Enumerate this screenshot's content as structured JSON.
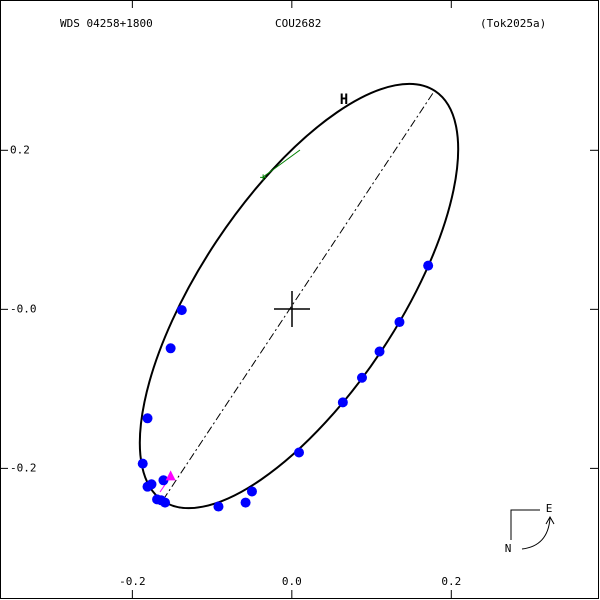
{
  "chart_data": {
    "type": "scatter",
    "header": {
      "left": "WDS 04258+1800",
      "center": "COU2682",
      "right": "(Tok2025a)"
    },
    "xlim": [
      -0.366,
      0.384
    ],
    "ylim": [
      -0.363,
      0.389
    ],
    "xticks": [
      -0.2,
      {
        "value": 0,
        "label": "0.0"
      },
      0.2
    ],
    "yticks": [
      -0.2,
      {
        "value": 0,
        "label": "-0.0"
      },
      0.2
    ],
    "series": [
      {
        "color": "#0000ff",
        "marker": "circle",
        "x": [
          -0.138,
          -0.152,
          -0.181,
          -0.187,
          -0.181,
          -0.176,
          -0.161,
          -0.169,
          -0.164,
          -0.159,
          -0.092,
          -0.058,
          -0.05,
          0.009,
          0.064,
          0.088,
          0.11,
          0.135,
          0.171
        ],
        "y": [
          -0.001,
          -0.049,
          -0.137,
          -0.194,
          -0.223,
          -0.22,
          -0.215,
          -0.239,
          -0.24,
          -0.243,
          -0.248,
          -0.243,
          -0.229,
          -0.18,
          -0.117,
          -0.086,
          -0.053,
          -0.016,
          0.055
        ]
      },
      {
        "color": "#ff00ff",
        "marker": "triangle",
        "x": [
          -0.152
        ],
        "y": [
          -0.21
        ]
      },
      {
        "color": "#008000",
        "marker": "plus",
        "x": [
          -0.036
        ],
        "y": [
          0.166
        ]
      }
    ],
    "annotation": {
      "text": "H",
      "color": "#ff0000"
    },
    "compass": {
      "east": "E",
      "north": "N"
    }
  }
}
